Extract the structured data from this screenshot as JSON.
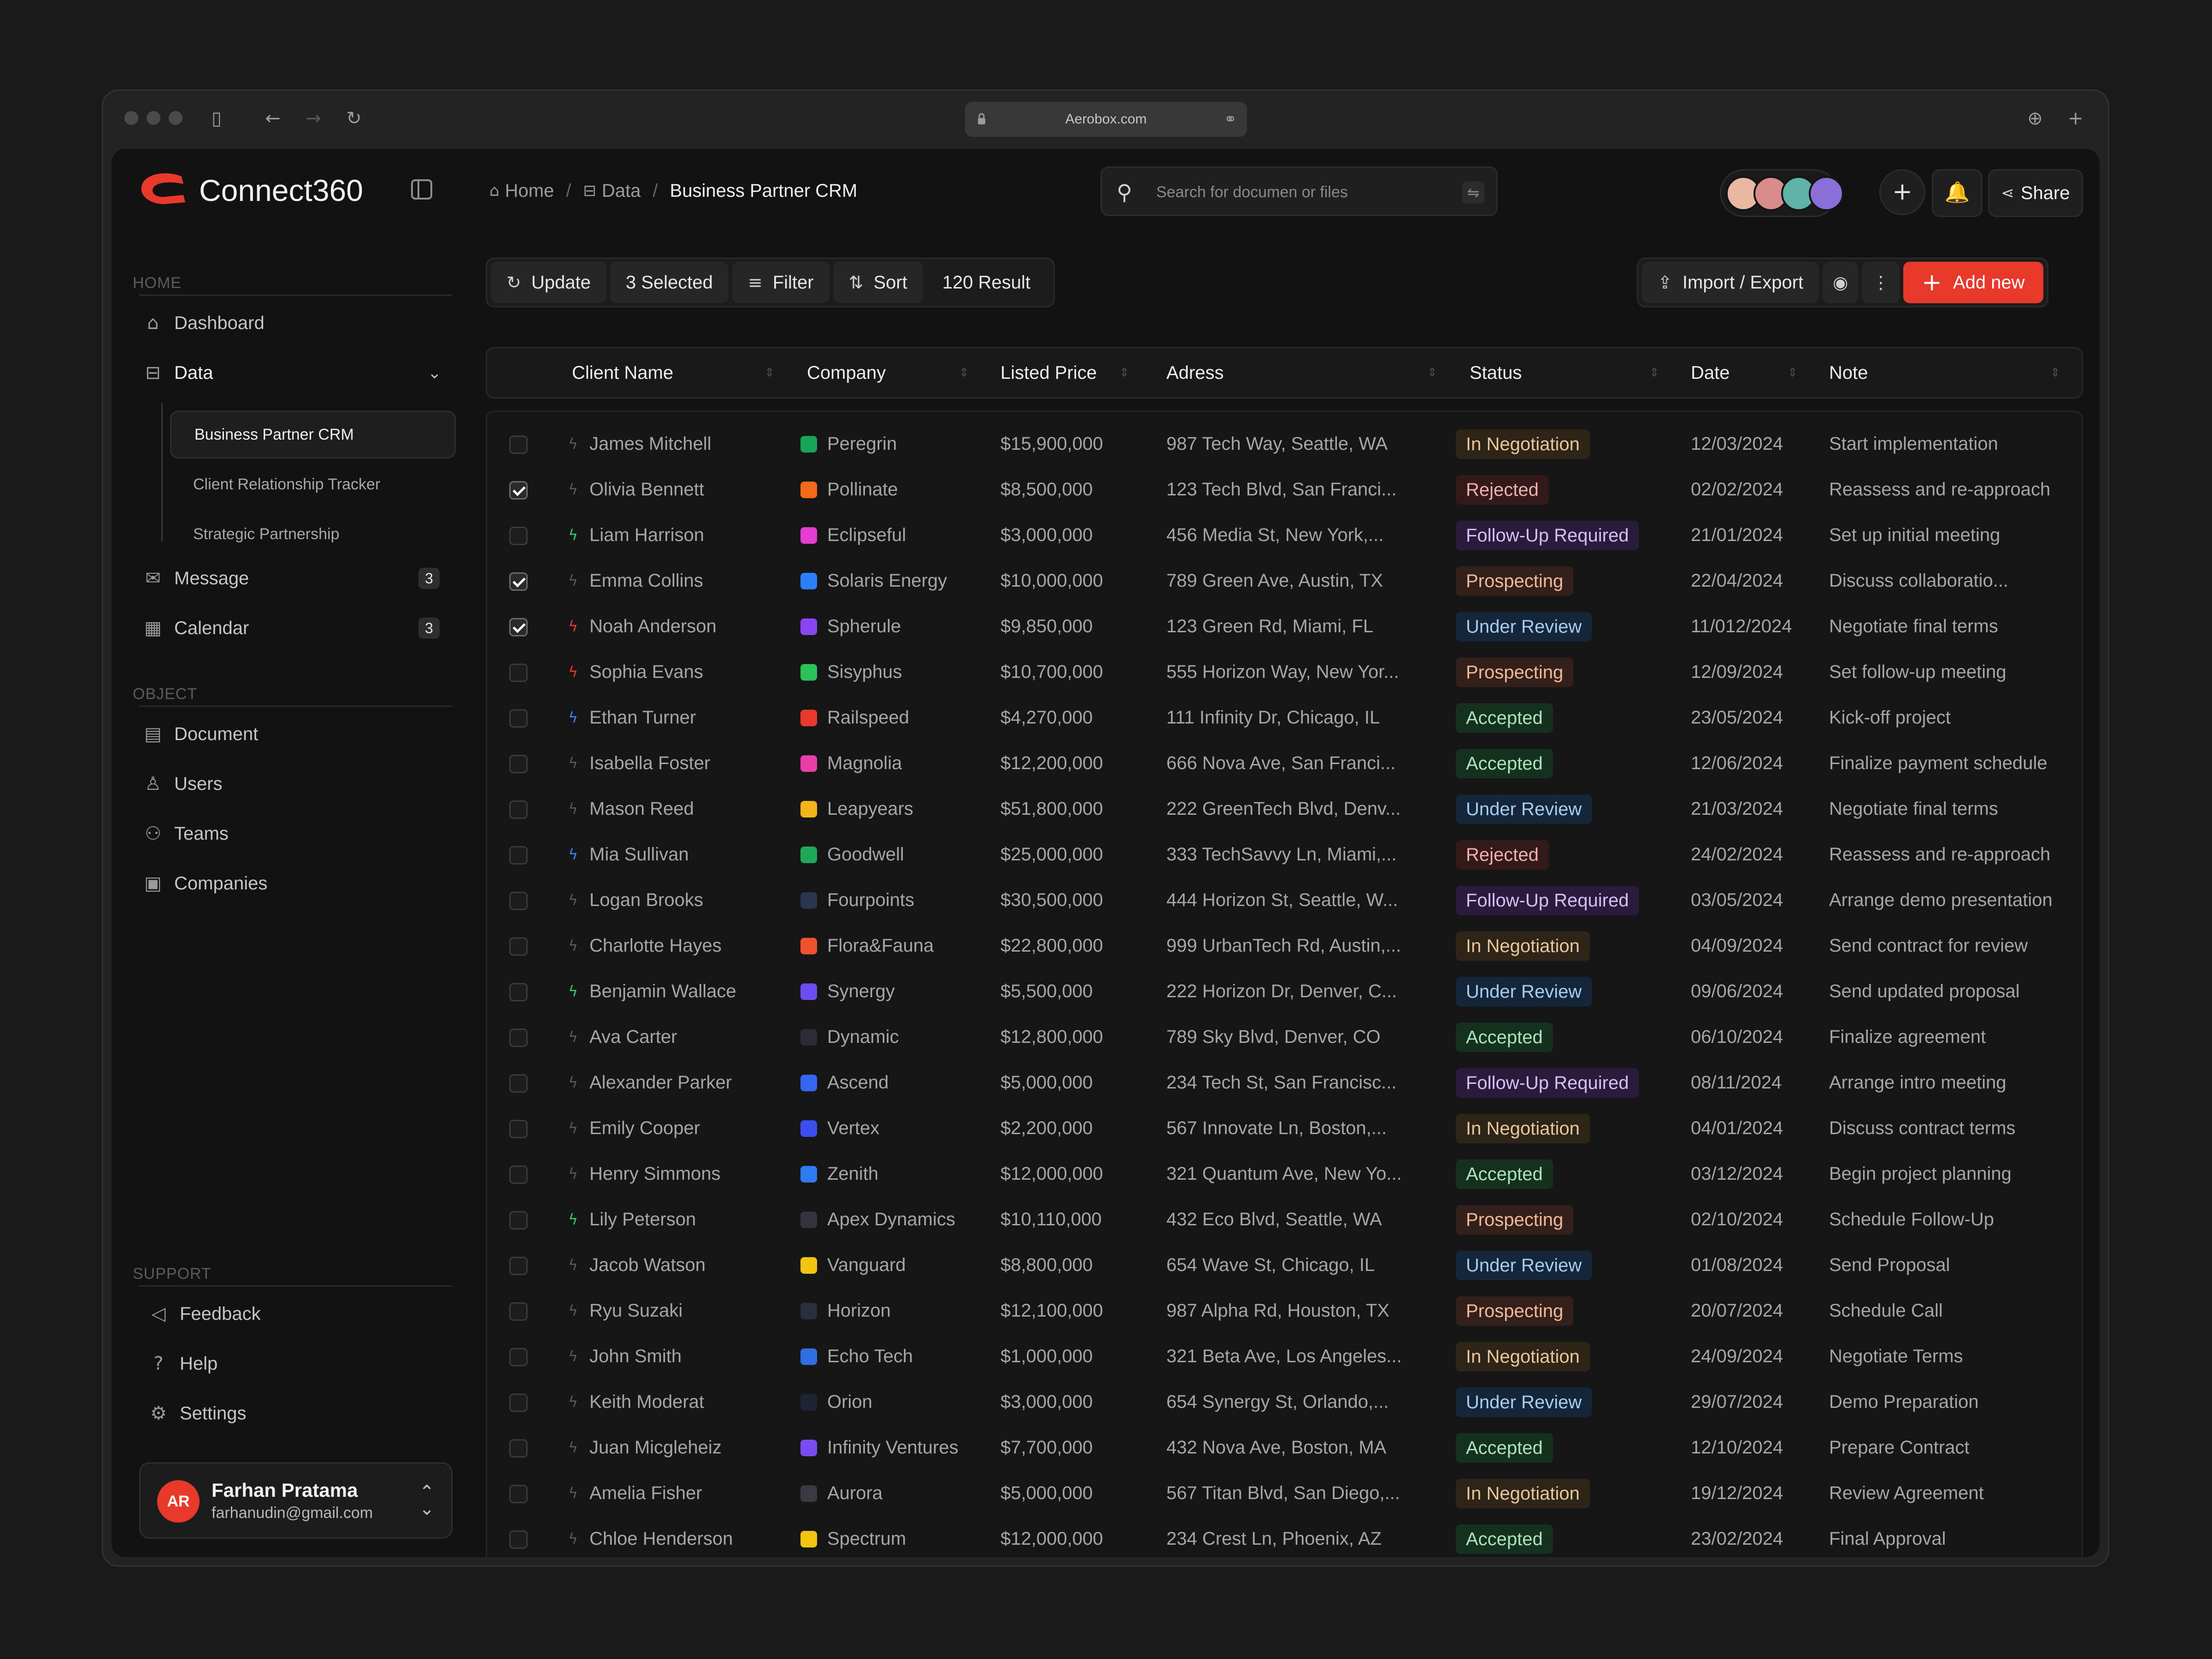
{
  "browser": {
    "url": "Aerobox.com"
  },
  "brand": {
    "name": "Connect360",
    "color": "#e8392b"
  },
  "sidebar": {
    "section_home": "HOME",
    "section_object": "OBJECT",
    "section_support": "SUPPORT",
    "dashboard": "Dashboard",
    "data": "Data",
    "data_sub": [
      "Business Partner CRM",
      "Client Relationship Tracker",
      "Strategic Partnership"
    ],
    "message": "Message",
    "message_count": "3",
    "calendar": "Calendar",
    "calendar_count": "3",
    "document": "Document",
    "users": "Users",
    "teams": "Teams",
    "companies": "Companies",
    "feedback": "Feedback",
    "help": "Help",
    "settings": "Settings"
  },
  "user": {
    "initials": "AR",
    "name": "Farhan Pratama",
    "email": "farhanudin@gmail.com"
  },
  "breadcrumb": [
    "Home",
    "Data",
    "Business Partner CRM"
  ],
  "search": {
    "placeholder": "Search for documen or files"
  },
  "header": {
    "share": "Share"
  },
  "toolbar": {
    "update": "Update",
    "selected": "3 Selected",
    "filter": "Filter",
    "sort": "Sort",
    "results": "120 Result",
    "import_export": "Import / Export",
    "add_new": "Add new"
  },
  "table": {
    "columns": [
      "Client Name",
      "Company",
      "Listed Price",
      "Adress",
      "Status",
      "Date",
      "Note"
    ],
    "rows": [
      {
        "checked": false,
        "bolt": "#5a5a5a",
        "name": "James Mitchell",
        "logo": "#18a558",
        "company": "Peregrin",
        "price": "$15,900,000",
        "address": "987 Tech Way, Seattle, WA",
        "status": "In Negotiation",
        "date": "12/03/2024",
        "note": "Start implementation"
      },
      {
        "checked": true,
        "bolt": "#5a5a5a",
        "name": "Olivia Bennett",
        "logo": "#f26a1b",
        "company": "Pollinate",
        "price": "$8,500,000",
        "address": "123 Tech Blvd, San Franci...",
        "status": "Rejected",
        "date": "02/02/2024",
        "note": "Reassess and re-approach"
      },
      {
        "checked": false,
        "bolt": "#2ecc71",
        "name": "Liam Harrison",
        "logo": "#e43dcf",
        "company": "Eclipseful",
        "price": "$3,000,000",
        "address": "456 Media St, New York,...",
        "status": "Follow-Up Required",
        "date": "21/01/2024",
        "note": "Set up initial meeting"
      },
      {
        "checked": true,
        "bolt": "#5a5a5a",
        "name": "Emma Collins",
        "logo": "#2d7ff9",
        "company": "Solaris Energy",
        "price": "$10,000,000",
        "address": "789 Green Ave, Austin, TX",
        "status": "Prospecting",
        "date": "22/04/2024",
        "note": "Discuss collaboratio..."
      },
      {
        "checked": true,
        "bolt": "#e8392b",
        "name": "Noah Anderson",
        "logo": "#8b45f0",
        "company": "Spherule",
        "price": "$9,850,000",
        "address": "123 Green Rd, Miami, FL",
        "status": "Under Review",
        "date": "11/012/2024",
        "note": "Negotiate final terms"
      },
      {
        "checked": false,
        "bolt": "#e8392b",
        "name": "Sophia Evans",
        "logo": "#2bc25a",
        "company": "Sisyphus",
        "price": "$10,700,000",
        "address": "555 Horizon Way, New Yor...",
        "status": "Prospecting",
        "date": "12/09/2024",
        "note": "Set follow-up meeting"
      },
      {
        "checked": false,
        "bolt": "#3b82f6",
        "name": "Ethan Turner",
        "logo": "#e8392b",
        "company": "Railspeed",
        "price": "$4,270,000",
        "address": "111 Infinity Dr, Chicago, IL",
        "status": "Accepted",
        "date": "23/05/2024",
        "note": "Kick-off project"
      },
      {
        "checked": false,
        "bolt": "#5a5a5a",
        "name": "Isabella Foster",
        "logo": "#e83ea8",
        "company": "Magnolia",
        "price": "$12,200,000",
        "address": "666 Nova Ave, San Franci...",
        "status": "Accepted",
        "date": "12/06/2024",
        "note": "Finalize payment schedule"
      },
      {
        "checked": false,
        "bolt": "#5a5a5a",
        "name": "Mason Reed",
        "logo": "#f4b41a",
        "company": "Leapyears",
        "price": "$51,800,000",
        "address": "222 GreenTech Blvd, Denv...",
        "status": "Under Review",
        "date": "21/03/2024",
        "note": "Negotiate final terms"
      },
      {
        "checked": false,
        "bolt": "#3b82f6",
        "name": "Mia Sullivan",
        "logo": "#1fa85a",
        "company": "Goodwell",
        "price": "$25,000,000",
        "address": "333 TechSavvy Ln, Miami,...",
        "status": "Rejected",
        "date": "24/02/2024",
        "note": "Reassess and re-approach"
      },
      {
        "checked": false,
        "bolt": "#5a5a5a",
        "name": "Logan Brooks",
        "logo": "#2a3550",
        "company": "Fourpoints",
        "price": "$30,500,000",
        "address": "444 Horizon St, Seattle, W...",
        "status": "Follow-Up Required",
        "date": "03/05/2024",
        "note": "Arrange demo presentation"
      },
      {
        "checked": false,
        "bolt": "#5a5a5a",
        "name": "Charlotte Hayes",
        "logo": "#f0522f",
        "company": "Flora&Fauna",
        "price": "$22,800,000",
        "address": "999 UrbanTech Rd, Austin,...",
        "status": "In Negotiation",
        "date": "04/09/2024",
        "note": "Send contract for review"
      },
      {
        "checked": false,
        "bolt": "#2ecc71",
        "name": "Benjamin Wallace",
        "logo": "#6c4df2",
        "company": "Synergy",
        "price": "$5,500,000",
        "address": "222 Horizon Dr, Denver, C...",
        "status": "Under Review",
        "date": "09/06/2024",
        "note": "Send updated proposal"
      },
      {
        "checked": false,
        "bolt": "#5a5a5a",
        "name": "Ava Carter",
        "logo": "#2b2b3a",
        "company": "Dynamic",
        "price": "$12,800,000",
        "address": "789 Sky Blvd, Denver, CO",
        "status": "Accepted",
        "date": "06/10/2024",
        "note": "Finalize agreement"
      },
      {
        "checked": false,
        "bolt": "#5a5a5a",
        "name": "Alexander Parker",
        "logo": "#3566f2",
        "company": "Ascend",
        "price": "$5,000,000",
        "address": "234 Tech St, San Francisc...",
        "status": "Follow-Up Required",
        "date": "08/11/2024",
        "note": "Arrange intro meeting"
      },
      {
        "checked": false,
        "bolt": "#5a5a5a",
        "name": "Emily Cooper",
        "logo": "#3b4ef0",
        "company": "Vertex",
        "price": "$2,200,000",
        "address": "567 Innovate Ln, Boston,...",
        "status": "In Negotiation",
        "date": "04/01/2024",
        "note": "Discuss contract terms"
      },
      {
        "checked": false,
        "bolt": "#5a5a5a",
        "name": "Henry Simmons",
        "logo": "#2f7cf0",
        "company": "Zenith",
        "price": "$12,000,000",
        "address": "321 Quantum Ave, New Yo...",
        "status": "Accepted",
        "date": "03/12/2024",
        "note": "Begin project planning"
      },
      {
        "checked": false,
        "bolt": "#2ecc71",
        "name": "Lily Peterson",
        "logo": "#34343c",
        "company": "Apex Dynamics",
        "price": "$10,110,000",
        "address": "432 Eco Blvd, Seattle, WA",
        "status": "Prospecting",
        "date": "02/10/2024",
        "note": "Schedule Follow-Up"
      },
      {
        "checked": false,
        "bolt": "#5a5a5a",
        "name": "Jacob Watson",
        "logo": "#f2c511",
        "company": "Vanguard",
        "price": "$8,800,000",
        "address": "654 Wave St, Chicago, IL",
        "status": "Under Review",
        "date": "01/08/2024",
        "note": "Send Proposal"
      },
      {
        "checked": false,
        "bolt": "#5a5a5a",
        "name": "Ryu Suzaki",
        "logo": "#2a2f3c",
        "company": "Horizon",
        "price": "$12,100,000",
        "address": "987 Alpha Rd, Houston, TX",
        "status": "Prospecting",
        "date": "20/07/2024",
        "note": "Schedule Call"
      },
      {
        "checked": false,
        "bolt": "#5a5a5a",
        "name": "John Smith",
        "logo": "#2f6fe0",
        "company": "Echo Tech",
        "price": "$1,000,000",
        "address": "321 Beta Ave, Los Angeles...",
        "status": "In Negotiation",
        "date": "24/09/2024",
        "note": "Negotiate Terms"
      },
      {
        "checked": false,
        "bolt": "#5a5a5a",
        "name": "Keith Moderat",
        "logo": "#1f2433",
        "company": "Orion",
        "price": "$3,000,000",
        "address": "654 Synergy St, Orlando,...",
        "status": "Under Review",
        "date": "29/07/2024",
        "note": "Demo Preparation"
      },
      {
        "checked": false,
        "bolt": "#5a5a5a",
        "name": "Juan Micgleheiz",
        "logo": "#7a4cf0",
        "company": "Infinity Ventures",
        "price": "$7,700,000",
        "address": "432 Nova Ave, Boston, MA",
        "status": "Accepted",
        "date": "12/10/2024",
        "note": "Prepare Contract"
      },
      {
        "checked": false,
        "bolt": "#5a5a5a",
        "name": "Amelia Fisher",
        "logo": "#3a3a44",
        "company": "Aurora",
        "price": "$5,000,000",
        "address": "567 Titan Blvd, San Diego,...",
        "status": "In Negotiation",
        "date": "19/12/2024",
        "note": "Review Agreement"
      },
      {
        "checked": false,
        "bolt": "#5a5a5a",
        "name": "Chloe Henderson",
        "logo": "#f2c511",
        "company": "Spectrum",
        "price": "$12,000,000",
        "address": "234 Crest Ln, Phoenix, AZ",
        "status": "Accepted",
        "date": "23/02/2024",
        "note": "Final Approval"
      }
    ]
  },
  "status_colors": {
    "In Negotiation": {
      "bg": "#2e2418",
      "fg": "#e9c79a"
    },
    "Rejected": {
      "bg": "#34191a",
      "fg": "#f0b0b0"
    },
    "Follow-Up Required": {
      "bg": "#2a1b3c",
      "fg": "#d6c0f5"
    },
    "Prospecting": {
      "bg": "#33201a",
      "fg": "#f1b99a"
    },
    "Under Review": {
      "bg": "#15263a",
      "fg": "#a9cdf2"
    },
    "Accepted": {
      "bg": "#16301f",
      "fg": "#a9e6bd"
    }
  }
}
